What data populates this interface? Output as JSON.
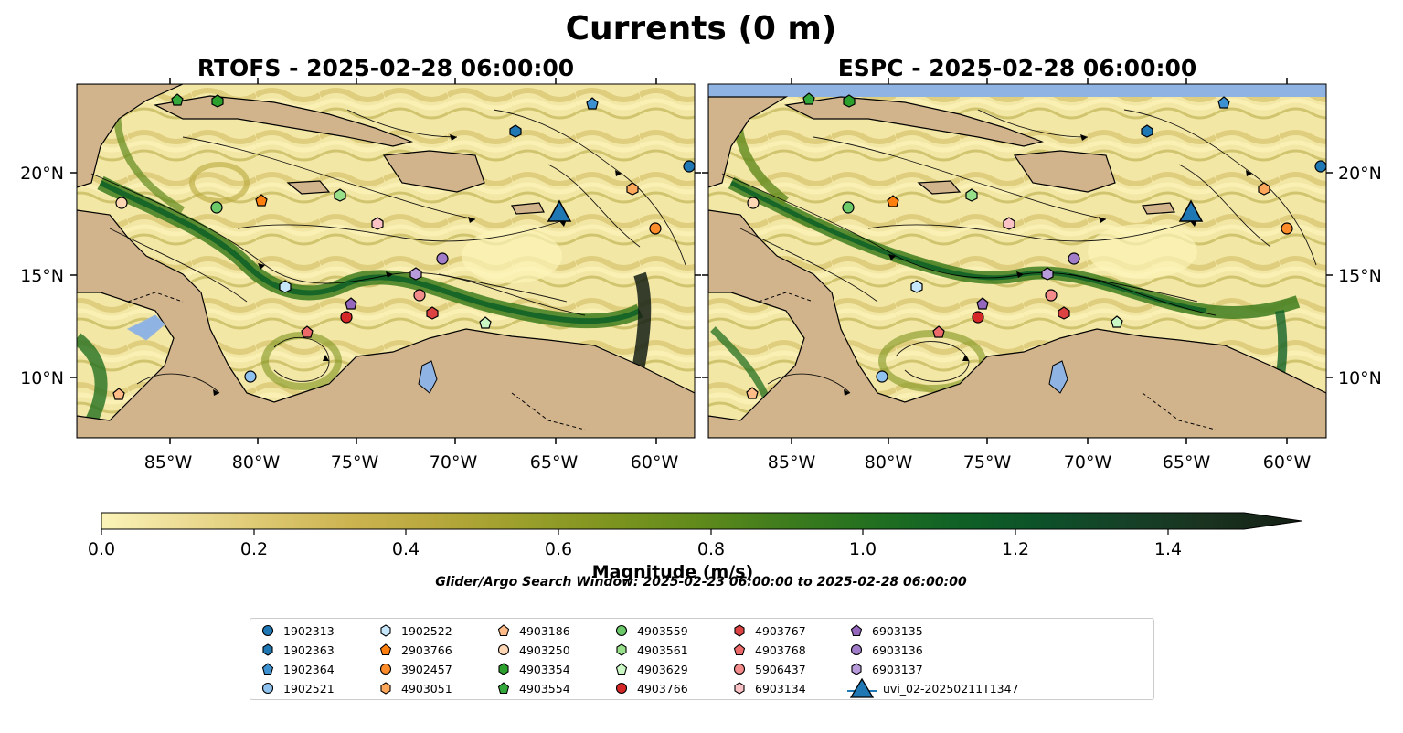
{
  "figure": {
    "title": "Currents (0 m)",
    "panels": [
      {
        "title": "RTOFS - 2025-02-28 06:00:00"
      },
      {
        "title": "ESPC - 2025-02-28 06:00:00"
      }
    ],
    "longitude_ticks": [
      "85°W",
      "80°W",
      "75°W",
      "70°W",
      "65°W",
      "60°W"
    ],
    "latitude_ticks": [
      "20°N",
      "15°N",
      "10°N"
    ],
    "colorbar": {
      "label": "Magnitude (m/s)",
      "ticks": [
        "0.0",
        "0.2",
        "0.4",
        "0.6",
        "0.8",
        "1.0",
        "1.2",
        "1.4"
      ]
    },
    "search_window": "Glider/Argo Search Window: 2025-02-23 06:00:00 to 2025-02-28 06:00:00",
    "colors": {
      "land": "#d2b48c",
      "lake": "#8fb4e3",
      "coast": "#000000",
      "scale": [
        "#fbf3b8",
        "#ecdc94",
        "#dcc66e",
        "#cbb34f",
        "#b7a83c",
        "#9c9f2c",
        "#7f951f",
        "#5f8a1c",
        "#3e7c1d",
        "#237020",
        "#106226",
        "#0d5229",
        "#154228",
        "#1a3320",
        "#141f14"
      ]
    }
  },
  "legend": [
    {
      "label": "1902313",
      "color": "#1f77b4",
      "shape": "circle"
    },
    {
      "label": "1902363",
      "color": "#1f77b4",
      "shape": "hexagon"
    },
    {
      "label": "1902364",
      "color": "#3e91d0",
      "shape": "pentagon"
    },
    {
      "label": "1902521",
      "color": "#8fc2ee",
      "shape": "circle"
    },
    {
      "label": "1902522",
      "color": "#c6e6fb",
      "shape": "hexagon"
    },
    {
      "label": "2903766",
      "color": "#ff7f0e",
      "shape": "pentagon"
    },
    {
      "label": "3902457",
      "color": "#ff8c2a",
      "shape": "circle"
    },
    {
      "label": "4903051",
      "color": "#ffa75a",
      "shape": "hexagon"
    },
    {
      "label": "4903186",
      "color": "#ffbb88",
      "shape": "pentagon"
    },
    {
      "label": "4903250",
      "color": "#ffd7b4",
      "shape": "circle"
    },
    {
      "label": "4903354",
      "color": "#2ca02c",
      "shape": "hexagon"
    },
    {
      "label": "4903554",
      "color": "#34a83a",
      "shape": "pentagon"
    },
    {
      "label": "4903559",
      "color": "#6cc96a",
      "shape": "circle"
    },
    {
      "label": "4903561",
      "color": "#98df8a",
      "shape": "hexagon"
    },
    {
      "label": "4903629",
      "color": "#caf7c4",
      "shape": "pentagon"
    },
    {
      "label": "4903766",
      "color": "#d62728",
      "shape": "circle"
    },
    {
      "label": "4903767",
      "color": "#dc4242",
      "shape": "hexagon"
    },
    {
      "label": "4903768",
      "color": "#ec6a6a",
      "shape": "pentagon"
    },
    {
      "label": "5906437",
      "color": "#f38b8b",
      "shape": "circle"
    },
    {
      "label": "6903134",
      "color": "#fbc2c6",
      "shape": "hexagon"
    },
    {
      "label": "6903135",
      "color": "#9467bd",
      "shape": "pentagon"
    },
    {
      "label": "6903136",
      "color": "#a07cc9",
      "shape": "circle"
    },
    {
      "label": "6903137",
      "color": "#b89bda",
      "shape": "hexagon"
    },
    {
      "label": "uvi_02-20250211T1347",
      "color": "#1f77b4",
      "shape": "triangle"
    }
  ]
}
